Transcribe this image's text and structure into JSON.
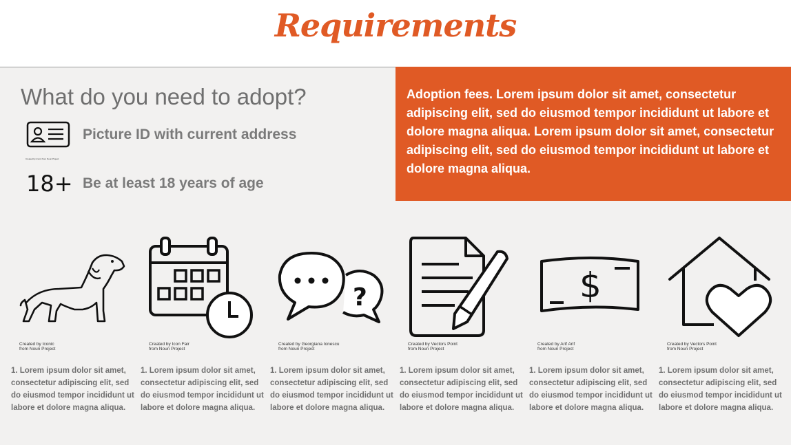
{
  "title": "Requirements",
  "question": "What do you need to adopt?",
  "requirements": [
    {
      "icon": "id-card-icon",
      "label": "Picture ID with current address"
    },
    {
      "icon": "age-18-plus-badge",
      "badge": "18+",
      "label": "Be at least 18 years of age"
    }
  ],
  "id_icon_credit": "Created by Iconic from Noun Project",
  "adoption_fees": "Adoption fees. Lorem ipsum dolor sit amet, consectetur adipiscing elit, sed do eiusmod tempor incididunt ut labore et dolore magna aliqua. Lorem ipsum dolor sit amet, consectetur adipiscing elit, sed do eiusmod tempor incididunt ut labore et dolore magna aliqua.",
  "cards": [
    {
      "icon": "dog-icon",
      "credit_line1": "Created by Iconic",
      "credit_line2": "from Noun Project",
      "text": "1. Lorem ipsum dolor sit amet, consectetur adipiscing elit, sed do eiusmod tempor incididunt ut labore et dolore magna aliqua."
    },
    {
      "icon": "calendar-clock-icon",
      "credit_line1": "Created by Icon Fair",
      "credit_line2": "from Noun Project",
      "text": "1. Lorem ipsum dolor sit amet, consectetur adipiscing elit, sed do eiusmod tempor incididunt ut labore et dolore magna aliqua."
    },
    {
      "icon": "speech-bubbles-icon",
      "credit_line1": "Created by Georgiana Ionescu",
      "credit_line2": "from Noun Project",
      "text": "1. Lorem ipsum dolor sit amet, consectetur adipiscing elit, sed do eiusmod tempor incididunt ut labore et dolore magna aliqua."
    },
    {
      "icon": "document-pen-icon",
      "credit_line1": "Created by Vectors Point",
      "credit_line2": "from Noun Project",
      "text": "1. Lorem ipsum dolor sit amet, consectetur adipiscing elit, sed do eiusmod tempor incididunt ut labore et dolore magna aliqua."
    },
    {
      "icon": "dollar-bill-icon",
      "credit_line1": "Created by Arif Arif",
      "credit_line2": "from Noun Project",
      "text": "1. Lorem ipsum dolor sit amet, consectetur adipiscing elit, sed do eiusmod tempor incididunt ut labore et dolore magna aliqua."
    },
    {
      "icon": "house-heart-icon",
      "credit_line1": "Created by Vectors Point",
      "credit_line2": "from Noun Project",
      "text": "1. Lorem ipsum dolor sit amet, consectetur adipiscing elit, sed do eiusmod tempor incididunt ut labore et dolore magna aliqua."
    }
  ],
  "colors": {
    "accent": "#e05a25",
    "panel": "#f2f1f0",
    "muted_text": "#707070"
  }
}
